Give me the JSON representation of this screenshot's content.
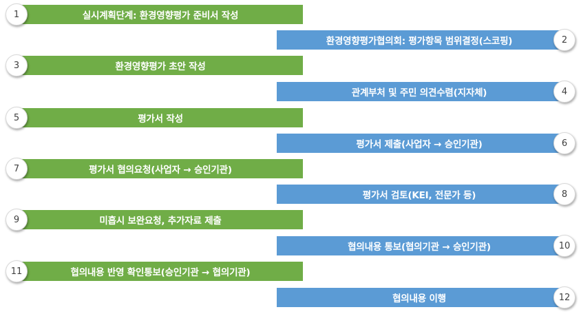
{
  "steps": [
    {
      "num": "1",
      "label": "실시계획단계: 환경영향평가 준비서 작성"
    },
    {
      "num": "2",
      "label": "환경영향평가협의회: 평가항목 범위결정(스코핑)"
    },
    {
      "num": "3",
      "label": "환경영향평가 초안 작성"
    },
    {
      "num": "4",
      "label": "관계부처 및 주민 의견수렴(지자체)"
    },
    {
      "num": "5",
      "label": "평가서 작성"
    },
    {
      "num": "6",
      "label": "평가서 제출(사업자 → 승인기관)"
    },
    {
      "num": "7",
      "label": "평가서 협의요청(사업자 → 승인기관)"
    },
    {
      "num": "8",
      "label": "평가서 검토(KEI, 전문가 등)"
    },
    {
      "num": "9",
      "label": "미흡시 보완요청, 추가자료 제출"
    },
    {
      "num": "10",
      "label": "협의내용 통보(협의기관 → 승인기관)"
    },
    {
      "num": "11",
      "label": "협의내용 반영 확인통보(승인기관 → 협의기관)"
    },
    {
      "num": "12",
      "label": "협의내용 이행"
    }
  ],
  "colors": {
    "left_bar": "#70ad47",
    "right_bar": "#5b9bd5"
  }
}
